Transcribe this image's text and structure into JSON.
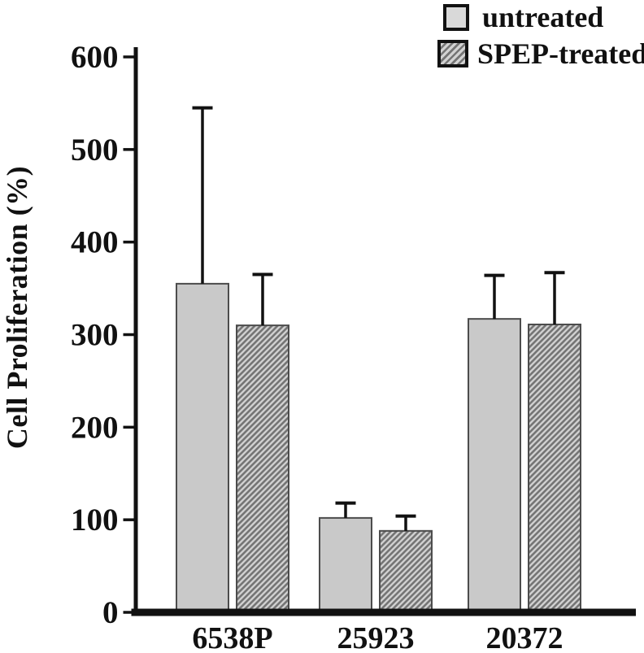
{
  "chart_data": {
    "type": "bar",
    "title": "",
    "ylabel": "Cell Proliferation (%)",
    "xlabel": "",
    "ylim": [
      0,
      600
    ],
    "yticks": [
      0,
      100,
      200,
      300,
      400,
      500,
      600
    ],
    "categories": [
      "6538P",
      "25923",
      "20372"
    ],
    "series": [
      {
        "name": "untreated",
        "style": "solid",
        "fill": "#c9c9c9",
        "values": [
          355,
          102,
          317
        ],
        "errors_plus": [
          190,
          16,
          47
        ]
      },
      {
        "name": "SPEP-treated",
        "style": "diagonal-hatch",
        "fill": "#d2d2d2",
        "hatch_color": "#757575",
        "values": [
          310,
          88,
          311
        ],
        "errors_plus": [
          55,
          16,
          56
        ]
      }
    ],
    "error_bars": "upper-only",
    "grid": false,
    "legend_position": "top-right"
  },
  "colors": {
    "axis": "#111111",
    "text": "#111111",
    "bar_border": "#4c4c4c",
    "background": "#ffffff"
  }
}
